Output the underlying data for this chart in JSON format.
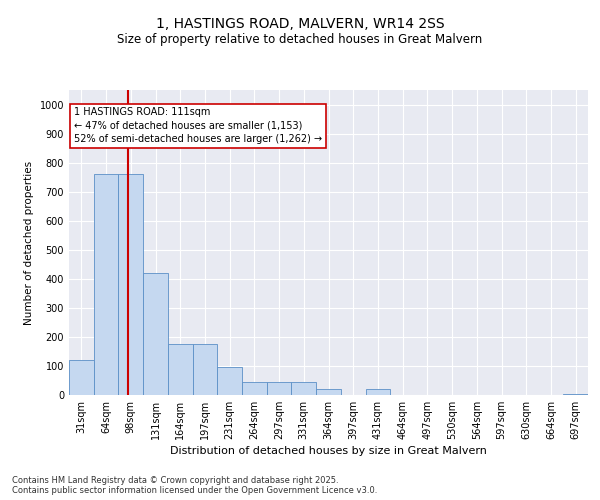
{
  "title": "1, HASTINGS ROAD, MALVERN, WR14 2SS",
  "subtitle": "Size of property relative to detached houses in Great Malvern",
  "xlabel": "Distribution of detached houses by size in Great Malvern",
  "ylabel": "Number of detached properties",
  "background_color": "#e8eaf2",
  "bar_color": "#c5d8f0",
  "bar_edge_color": "#5b8fc7",
  "vline_x": 111,
  "vline_color": "#cc0000",
  "annotation_text": "1 HASTINGS ROAD: 111sqm\n← 47% of detached houses are smaller (1,153)\n52% of semi-detached houses are larger (1,262) →",
  "annotation_box_color": "#ffffff",
  "annotation_box_edge": "#cc0000",
  "categories": [
    "31sqm",
    "64sqm",
    "98sqm",
    "131sqm",
    "164sqm",
    "197sqm",
    "231sqm",
    "264sqm",
    "297sqm",
    "331sqm",
    "364sqm",
    "397sqm",
    "431sqm",
    "464sqm",
    "497sqm",
    "530sqm",
    "564sqm",
    "597sqm",
    "630sqm",
    "664sqm",
    "697sqm"
  ],
  "bin_edges": [
    31,
    64,
    98,
    131,
    164,
    197,
    231,
    264,
    297,
    331,
    364,
    397,
    431,
    464,
    497,
    530,
    564,
    597,
    630,
    664,
    697,
    730
  ],
  "values": [
    120,
    760,
    760,
    420,
    175,
    175,
    95,
    45,
    45,
    45,
    20,
    0,
    20,
    0,
    0,
    0,
    0,
    0,
    0,
    0,
    5
  ],
  "ylim": [
    0,
    1050
  ],
  "yticks": [
    0,
    100,
    200,
    300,
    400,
    500,
    600,
    700,
    800,
    900,
    1000
  ],
  "footnote": "Contains HM Land Registry data © Crown copyright and database right 2025.\nContains public sector information licensed under the Open Government Licence v3.0.",
  "title_fontsize": 10,
  "subtitle_fontsize": 8.5,
  "xlabel_fontsize": 8,
  "ylabel_fontsize": 7.5,
  "tick_fontsize": 7,
  "annot_fontsize": 7,
  "footnote_fontsize": 6
}
